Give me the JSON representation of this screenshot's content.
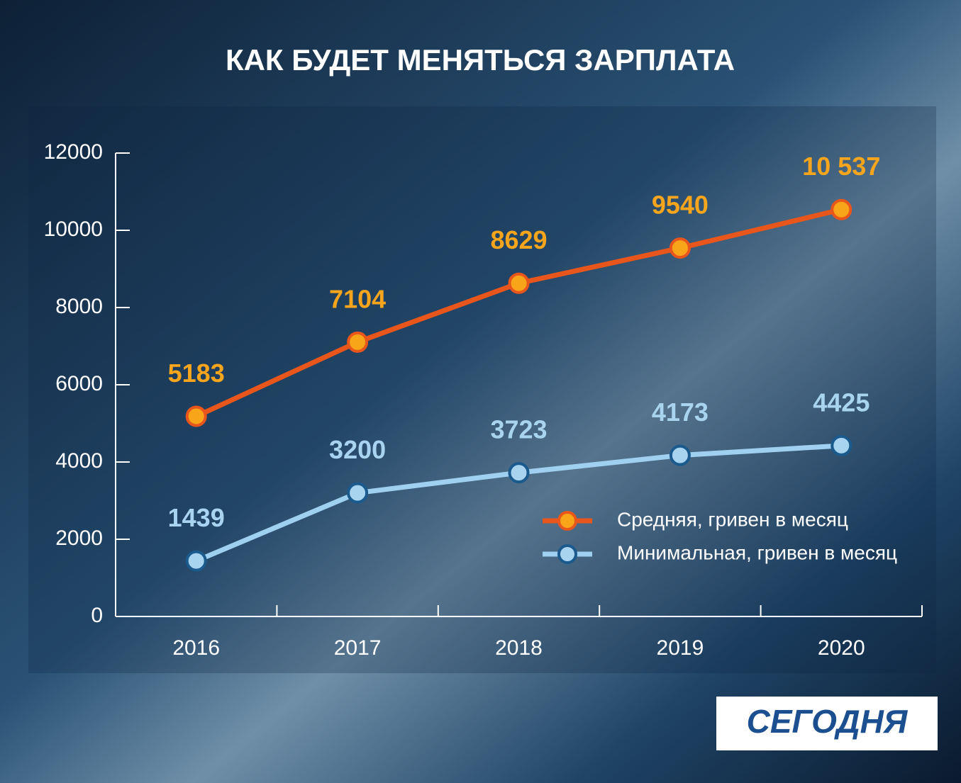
{
  "chart_data": {
    "type": "line",
    "title": "КАК БУДЕТ МЕНЯТЬСЯ ЗАРПЛАТА",
    "categories": [
      "2016",
      "2017",
      "2018",
      "2019",
      "2020"
    ],
    "series": [
      {
        "name": "Средняя, гривен в месяц",
        "color": "#e8561c",
        "marker_color": "#f9a51a",
        "label_color": "#f7a51c",
        "values": [
          5183,
          7104,
          8629,
          9540,
          10537
        ],
        "value_labels": [
          "5183",
          "7104",
          "8629",
          "9540",
          "10 537"
        ]
      },
      {
        "name": "Минимальная, гривен в месяц",
        "color": "#9fd0f0",
        "marker_color": "#a9d4f0",
        "label_color": "#a9d4f0",
        "values": [
          1439,
          3200,
          3723,
          4173,
          4425
        ]
      }
    ],
    "ylim": [
      0,
      12000
    ],
    "yticks": [
      0,
      2000,
      4000,
      6000,
      8000,
      10000,
      12000
    ],
    "grid": false,
    "logo": "СЕГОДНЯ"
  }
}
